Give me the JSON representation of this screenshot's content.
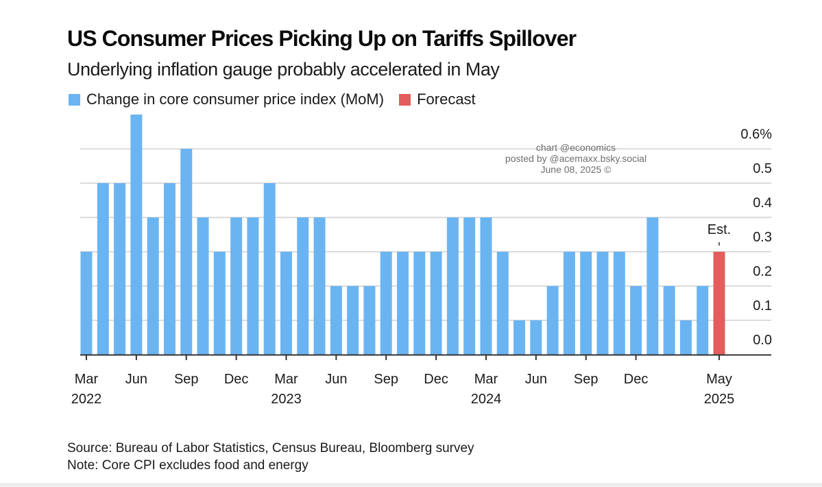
{
  "header": {
    "title": "US Consumer Prices Picking Up on Tariffs Spillover",
    "subtitle": "Underlying inflation gauge probably accelerated in May"
  },
  "legend": [
    {
      "label": "Change in core consumer price index (MoM)",
      "color": "#6BB4F2"
    },
    {
      "label": "Forecast",
      "color": "#E45C5C"
    }
  ],
  "watermark": {
    "line1": "chart @economics",
    "line2": "posted by @acemaxx.bsky.social",
    "line3": "June 08, 2025 ©"
  },
  "footer": {
    "source": "Source: Bureau of Labor Statistics, Census Bureau, Bloomberg survey",
    "note": "Note: Core CPI excludes food and energy"
  },
  "chart_data": {
    "type": "bar",
    "title": "US Consumer Prices Picking Up on Tariffs Spillover",
    "subtitle": "Underlying inflation gauge probably accelerated in May",
    "xlabel": "",
    "ylabel": "",
    "y_unit": "%",
    "ylim": [
      0,
      0.7
    ],
    "y_ticks": [
      0.0,
      0.1,
      0.2,
      0.3,
      0.4,
      0.5,
      0.6
    ],
    "y_tick_labels": [
      "0.0",
      "0.1",
      "0.2",
      "0.3",
      "0.4",
      "0.5",
      "0.6%"
    ],
    "y_axis_side": "right",
    "grid": true,
    "legend_position": "top-left",
    "categories": [
      "Mar 2022",
      "Apr 2022",
      "May 2022",
      "Jun 2022",
      "Jul 2022",
      "Aug 2022",
      "Sep 2022",
      "Oct 2022",
      "Nov 2022",
      "Dec 2022",
      "Jan 2023",
      "Feb 2023",
      "Mar 2023",
      "Apr 2023",
      "May 2023",
      "Jun 2023",
      "Jul 2023",
      "Aug 2023",
      "Sep 2023",
      "Oct 2023",
      "Nov 2023",
      "Dec 2023",
      "Jan 2024",
      "Feb 2024",
      "Mar 2024",
      "Apr 2024",
      "May 2024",
      "Jun 2024",
      "Jul 2024",
      "Aug 2024",
      "Sep 2024",
      "Oct 2024",
      "Nov 2024",
      "Dec 2024",
      "Jan 2025",
      "Feb 2025",
      "Mar 2025",
      "Apr 2025",
      "May 2025"
    ],
    "series": [
      {
        "name": "Change in core consumer price index (MoM)",
        "color": "#6BB4F2",
        "values": [
          0.3,
          0.5,
          0.5,
          0.7,
          0.4,
          0.5,
          0.6,
          0.4,
          0.3,
          0.4,
          0.4,
          0.5,
          0.3,
          0.4,
          0.4,
          0.2,
          0.2,
          0.2,
          0.3,
          0.3,
          0.3,
          0.3,
          0.4,
          0.4,
          0.4,
          0.3,
          0.1,
          0.1,
          0.2,
          0.3,
          0.3,
          0.3,
          0.3,
          0.2,
          0.4,
          0.2,
          0.1,
          0.2,
          null
        ]
      },
      {
        "name": "Forecast",
        "color": "#E45C5C",
        "values": [
          null,
          null,
          null,
          null,
          null,
          null,
          null,
          null,
          null,
          null,
          null,
          null,
          null,
          null,
          null,
          null,
          null,
          null,
          null,
          null,
          null,
          null,
          null,
          null,
          null,
          null,
          null,
          null,
          null,
          null,
          null,
          null,
          null,
          null,
          null,
          null,
          null,
          null,
          0.3
        ]
      }
    ],
    "x_ticks": [
      {
        "index": 0,
        "label": "Mar",
        "year": "2022"
      },
      {
        "index": 3,
        "label": "Jun",
        "year": ""
      },
      {
        "index": 6,
        "label": "Sep",
        "year": ""
      },
      {
        "index": 9,
        "label": "Dec",
        "year": ""
      },
      {
        "index": 12,
        "label": "Mar",
        "year": "2023"
      },
      {
        "index": 15,
        "label": "Jun",
        "year": ""
      },
      {
        "index": 18,
        "label": "Sep",
        "year": ""
      },
      {
        "index": 21,
        "label": "Dec",
        "year": ""
      },
      {
        "index": 24,
        "label": "Mar",
        "year": "2024"
      },
      {
        "index": 27,
        "label": "Jun",
        "year": ""
      },
      {
        "index": 30,
        "label": "Sep",
        "year": ""
      },
      {
        "index": 33,
        "label": "Dec",
        "year": ""
      },
      {
        "index": 38,
        "label": "May",
        "year": "2025"
      }
    ],
    "annotations": [
      {
        "index": 38,
        "text": "Est."
      }
    ]
  }
}
